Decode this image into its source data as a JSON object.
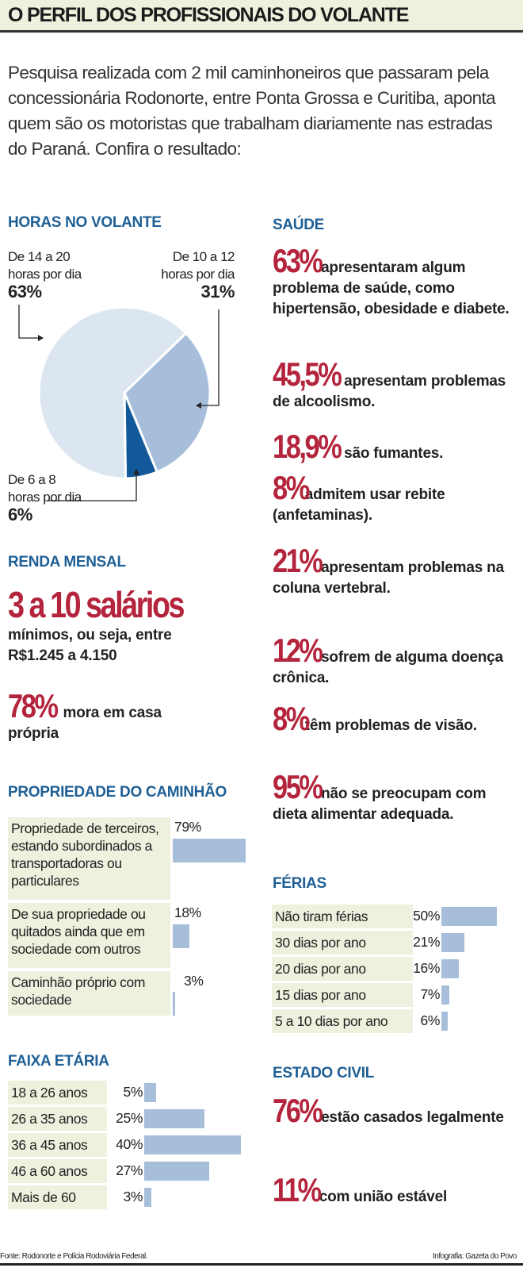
{
  "title": "O PERFIL DOS PROFISSIONAIS DO VOLANTE",
  "intro": "Pesquisa realizada com 2 mil caminhoneiros que passaram pela concessionária Rodonorte, entre Ponta Grossa e Curitiba, aponta quem são os motoristas que trabalham diariamente nas estradas do Paraná. Confira o resultado:",
  "colors": {
    "header_bg": "#eef1de",
    "heading": "#1e5f95",
    "highlight": "#b4243c",
    "bar": "#a7bedb",
    "pie_light": "#dce6f1",
    "pie_mid": "#a7bedb",
    "pie_dark": "#12599a"
  },
  "horas": {
    "heading": "HORAS NO VOLANTE",
    "labels": [
      {
        "l1": "De 14 a 20",
        "l2": "horas por dia",
        "pct": "63%"
      },
      {
        "l1": "De 10 a 12",
        "l2": "horas por dia",
        "pct": "31%"
      },
      {
        "l1": "De 6 a 8",
        "l2": "horas por dia",
        "pct": "6%"
      }
    ]
  },
  "renda": {
    "heading": "RENDA MENSAL",
    "big": "3 a 10 salários",
    "l1": "mínimos, ou seja, entre",
    "l2": "R$1.245 a 4.150",
    "casa_pct": "78%",
    "casa_l1": "mora em casa",
    "casa_l2": "própria"
  },
  "saude": {
    "heading": "SAÚDE",
    "items": [
      {
        "pct": "63%",
        "text": "apresentaram algum problema de saúde, como hipertensão, obesidade e diabete."
      },
      {
        "pct": "45,5%",
        "text": "apresentam problemas de alcoolismo."
      },
      {
        "pct": "18,9%",
        "text": "são fumantes."
      },
      {
        "pct": "8%",
        "text": "admitem usar rebite (anfetaminas)."
      },
      {
        "pct": "21%",
        "text": "apresentam problemas na coluna vertebral."
      },
      {
        "pct": "12%",
        "text": "sofrem de alguma doença crônica."
      },
      {
        "pct": "8%",
        "text": "têm problemas de visão."
      },
      {
        "pct": "95%",
        "text": "não se preocupam com dieta alimentar adequada."
      }
    ]
  },
  "estado_civil": {
    "heading": "ESTADO CIVIL",
    "items": [
      {
        "pct": "76%",
        "text": "estão casados legalmente"
      },
      {
        "pct": "11%",
        "text": "com união estável"
      }
    ]
  },
  "footer": {
    "source": "Fonte: Rodonorte e Polícia Rodoviária Federal.",
    "credit": "Infografia: Gazeta do Povo"
  },
  "chart_data": [
    {
      "type": "pie",
      "title": "HORAS NO VOLANTE",
      "categories": [
        "De 14 a 20 horas por dia",
        "De 10 a 12 horas por dia",
        "De 6 a 8 horas por dia"
      ],
      "values": [
        63,
        31,
        6
      ]
    },
    {
      "type": "bar",
      "title": "PROPRIEDADE DO CAMINHÃO",
      "categories": [
        "Propriedade de terceiros, estando subordinados a transportadoras ou particulares",
        "De sua propriedade ou quitados ainda que em sociedade com outros",
        "Caminhão próprio com sociedade"
      ],
      "values": [
        79,
        18,
        3
      ],
      "labels": [
        "79%",
        "18%",
        "3%"
      ]
    },
    {
      "type": "bar",
      "title": "FAIXA ETÁRIA",
      "categories": [
        "18 a 26 anos",
        "26 a 35 anos",
        "36 a 45 anos",
        "46 a 60 anos",
        "Mais de 60"
      ],
      "values": [
        5,
        25,
        40,
        27,
        3
      ],
      "labels": [
        "5%",
        "25%",
        "40%",
        "27%",
        "3%"
      ]
    },
    {
      "type": "bar",
      "title": "FÉRIAS",
      "categories": [
        "Não tiram férias",
        "30 dias por ano",
        "20 dias por ano",
        "15 dias por ano",
        "5 a 10 dias por ano"
      ],
      "values": [
        50,
        21,
        16,
        7,
        6
      ],
      "labels": [
        "50%",
        "21%",
        "16%",
        "7%",
        "6%"
      ]
    }
  ]
}
